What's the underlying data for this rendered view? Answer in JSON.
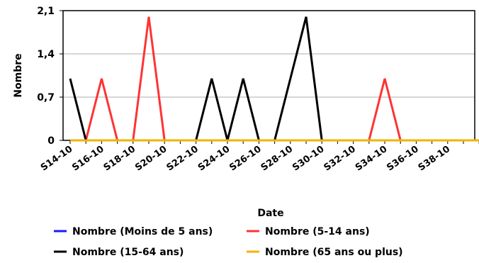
{
  "chart_data": {
    "type": "line",
    "xlabel": "Date",
    "ylabel": "Nombre",
    "ylim": [
      0,
      2.1
    ],
    "yticks": [
      0,
      0.7,
      1.4,
      2.1
    ],
    "ytick_labels": [
      "0",
      "0,7",
      "1,4",
      "2,1"
    ],
    "x": [
      "S14-10",
      "S15-10",
      "S16-10",
      "S17-10",
      "S18-10",
      "S19-10",
      "S20-10",
      "S21-10",
      "S22-10",
      "S23-10",
      "S24-10",
      "S25-10",
      "S26-10",
      "S27-10",
      "S28-10",
      "S29-10",
      "S30-10",
      "S31-10",
      "S32-10",
      "S33-10",
      "S34-10",
      "S35-10",
      "S36-10",
      "S37-10",
      "S38-10",
      "S39-10",
      "S40-10"
    ],
    "xtick_labels": [
      "S14-10",
      "S16-10",
      "S18-10",
      "S20-10",
      "S22-10",
      "S24-10",
      "S26-10",
      "S28-10",
      "S30-10",
      "S32-10",
      "S34-10",
      "S36-10",
      "S38-10"
    ],
    "grid": true,
    "legend_position": "bottom",
    "series": [
      {
        "name": "Nombre (Moins de 5 ans)",
        "color": "#1a1aff",
        "values": [
          0,
          0,
          0,
          0,
          0,
          0,
          0,
          0,
          0,
          0,
          0,
          0,
          0,
          0,
          0,
          0,
          0,
          0,
          0,
          0,
          0,
          0,
          0,
          0,
          0,
          0,
          0
        ]
      },
      {
        "name": "Nombre (5-14 ans)",
        "color": "#ff3333",
        "values": [
          0,
          0,
          1,
          0,
          0,
          2,
          0,
          0,
          0,
          0,
          0,
          0,
          0,
          0,
          0,
          0,
          0,
          0,
          0,
          0,
          1,
          0,
          0,
          0,
          0,
          0,
          0
        ]
      },
      {
        "name": "Nombre (15-64 ans)",
        "color": "#000000",
        "values": [
          1,
          0,
          0,
          0,
          0,
          0,
          0,
          0,
          0,
          1,
          0,
          1,
          0,
          0,
          1,
          2,
          0,
          0,
          0,
          0,
          0,
          0,
          0,
          0,
          0,
          0,
          0
        ]
      },
      {
        "name": "Nombre (65 ans ou plus)",
        "color": "#f0b400",
        "values": [
          0,
          0,
          0,
          0,
          0,
          0,
          0,
          0,
          0,
          0,
          0,
          0,
          0,
          0,
          0,
          0,
          0,
          0,
          0,
          0,
          0,
          0,
          0,
          0,
          0,
          0,
          0
        ]
      }
    ],
    "segments_hidden_note_free": true
  }
}
